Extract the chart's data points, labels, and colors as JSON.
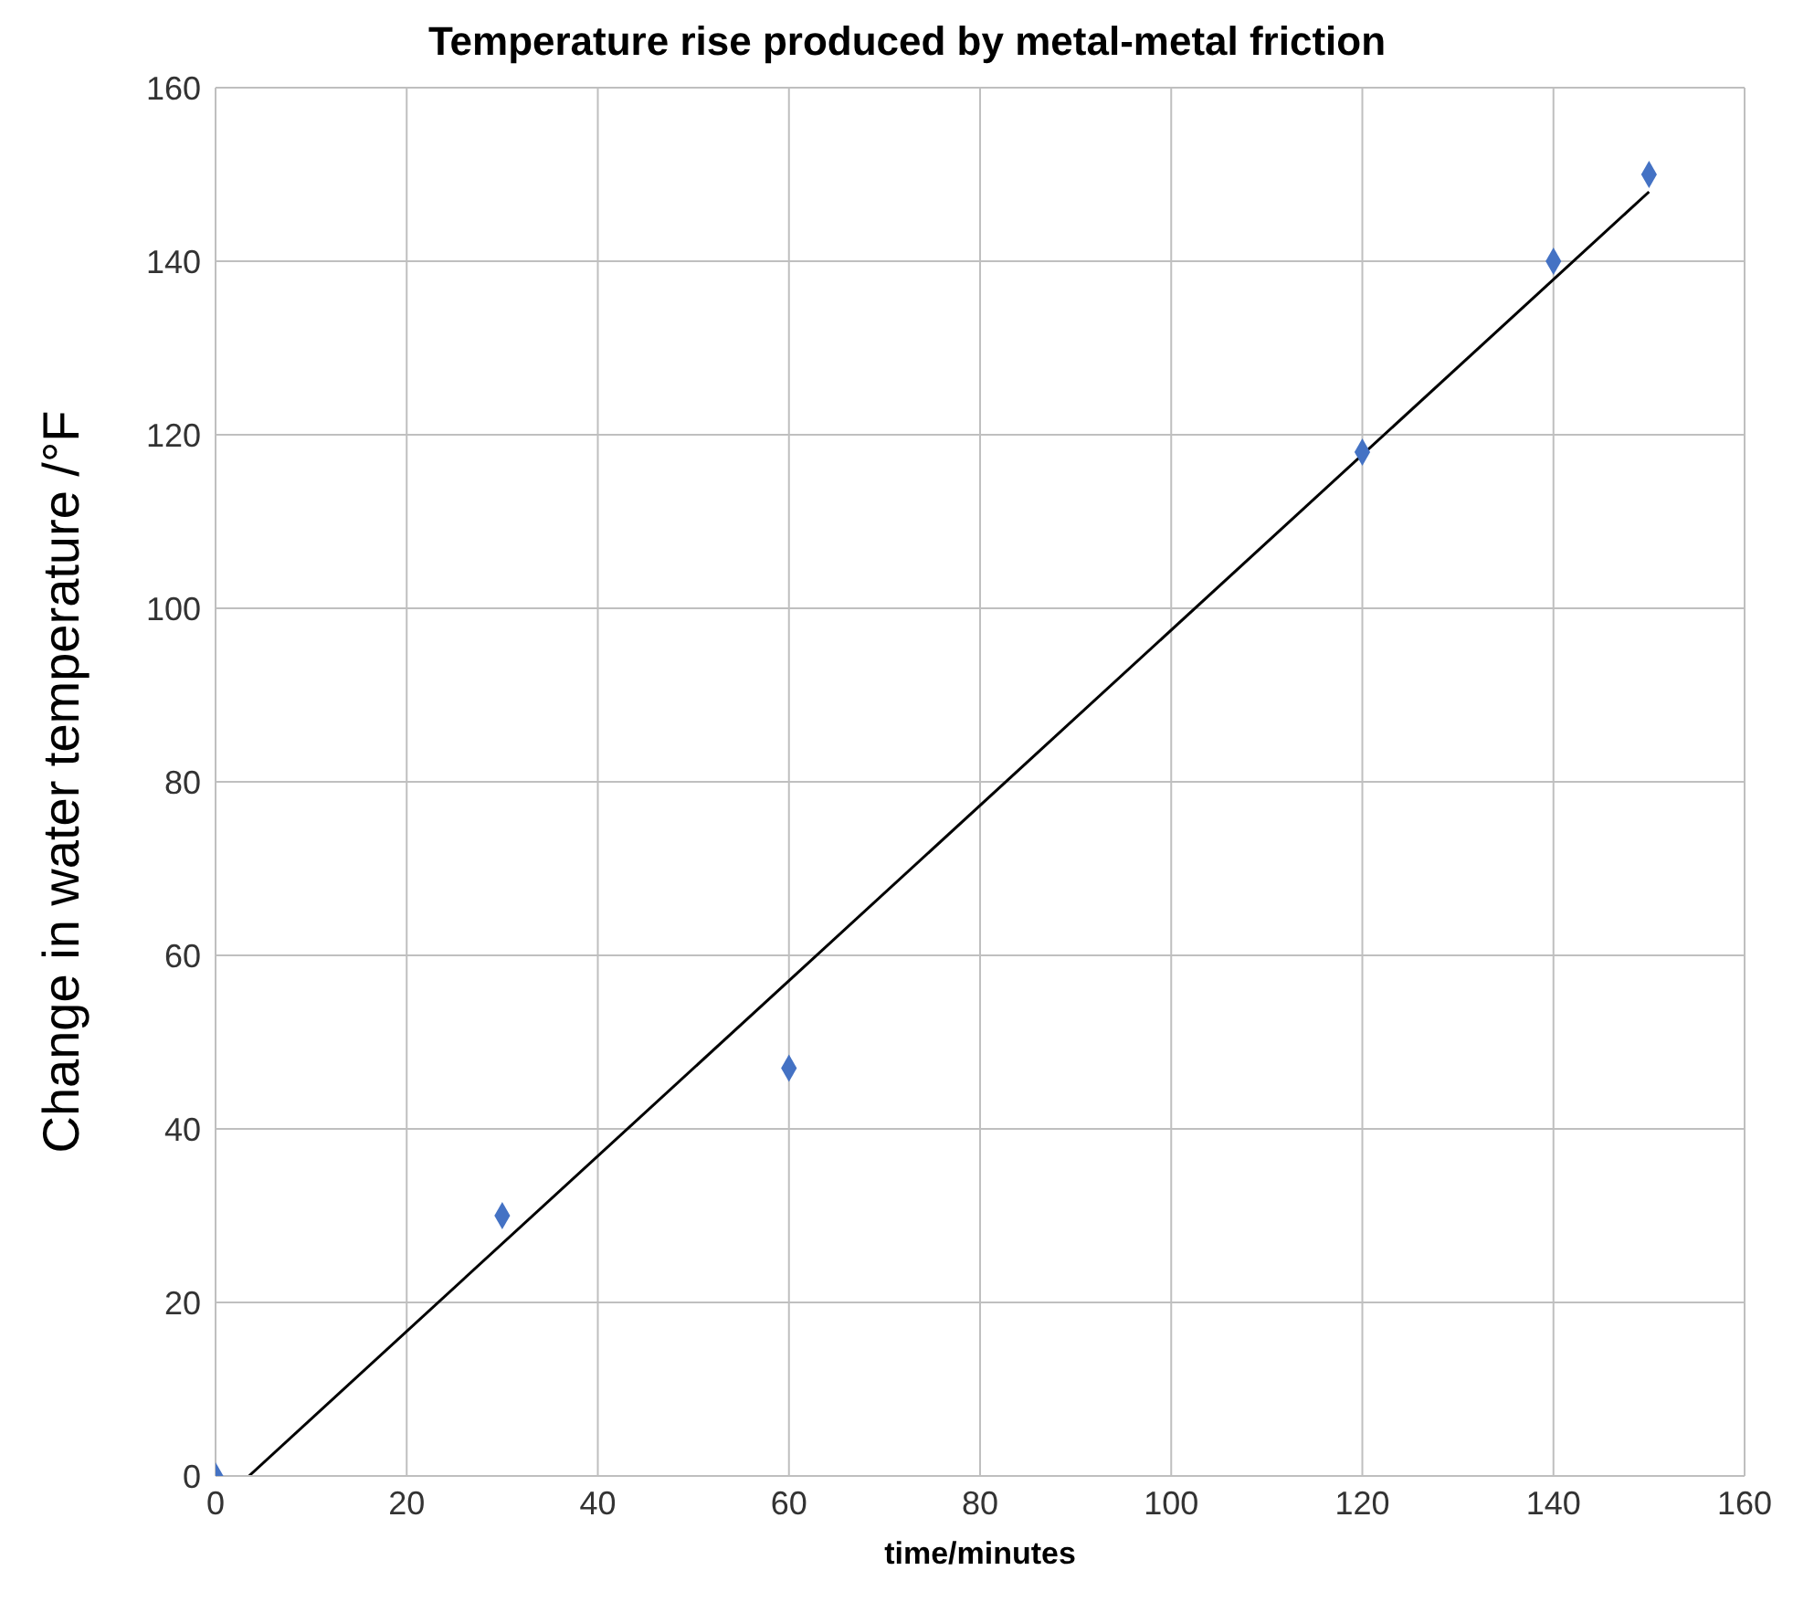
{
  "chart_data": {
    "type": "scatter",
    "title": "Temperature rise produced by metal-metal friction",
    "xlabel": "time/minutes",
    "ylabel": "Change in water temperature /°F",
    "xlim": [
      0,
      160
    ],
    "xticks": [
      0,
      20,
      40,
      60,
      80,
      100,
      120,
      140,
      160
    ],
    "ylim": [
      0,
      160
    ],
    "yticks": [
      0,
      20,
      40,
      60,
      80,
      100,
      120,
      140,
      160
    ],
    "grid": true,
    "series": [
      {
        "color": "#4472c4",
        "marker": "diamond",
        "x": [
          0,
          30,
          60,
          120,
          140,
          150
        ],
        "values": [
          0,
          30,
          47,
          118,
          140,
          150
        ]
      },
      {
        "type": "line",
        "color": "#000000",
        "marker": "none",
        "line_style": "solid",
        "x": [
          3.5,
          150
        ],
        "values": [
          0,
          148
        ]
      }
    ]
  }
}
